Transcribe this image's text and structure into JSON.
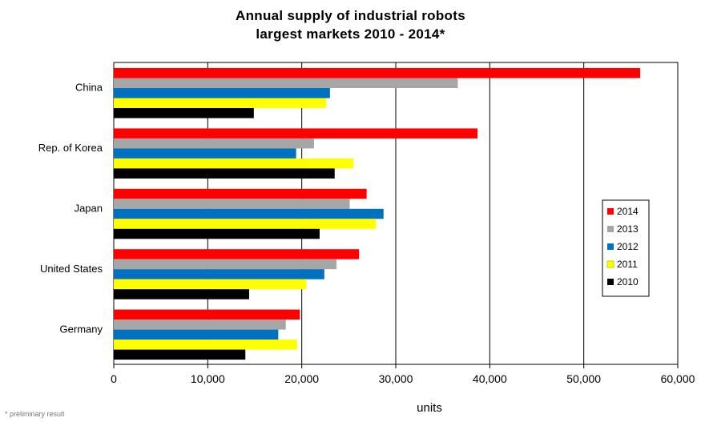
{
  "chart_data": {
    "type": "bar",
    "orientation": "horizontal",
    "title": "Annual supply of industrial robots",
    "subtitle": "largest markets 2010 - 2014*",
    "xlabel": "units",
    "ylabel": "",
    "xlim": [
      0,
      60000
    ],
    "ticks": [
      "0",
      "10,000",
      "20,000",
      "30,000",
      "40,000",
      "50,000",
      "60,000"
    ],
    "tick_values": [
      0,
      10000,
      20000,
      30000,
      40000,
      50000,
      60000
    ],
    "grid": "vertical",
    "legend_position": "right",
    "categories": [
      "China",
      "Rep. of Korea",
      "Japan",
      "United States",
      "Germany"
    ],
    "series": [
      {
        "name": "2014",
        "color": "#ff0000",
        "values": [
          56000,
          38700,
          26900,
          26100,
          19800
        ]
      },
      {
        "name": "2013",
        "color": "#a6a6a6",
        "values": [
          36600,
          21300,
          25100,
          23700,
          18300
        ]
      },
      {
        "name": "2012",
        "color": "#0070c0",
        "values": [
          23000,
          19400,
          28700,
          22400,
          17500
        ]
      },
      {
        "name": "2011",
        "color": "#ffff00",
        "values": [
          22600,
          25500,
          27900,
          20500,
          19500
        ]
      },
      {
        "name": "2010",
        "color": "#000000",
        "values": [
          14900,
          23500,
          21900,
          14400,
          14000
        ]
      }
    ],
    "footnote": "* preliminary result"
  }
}
